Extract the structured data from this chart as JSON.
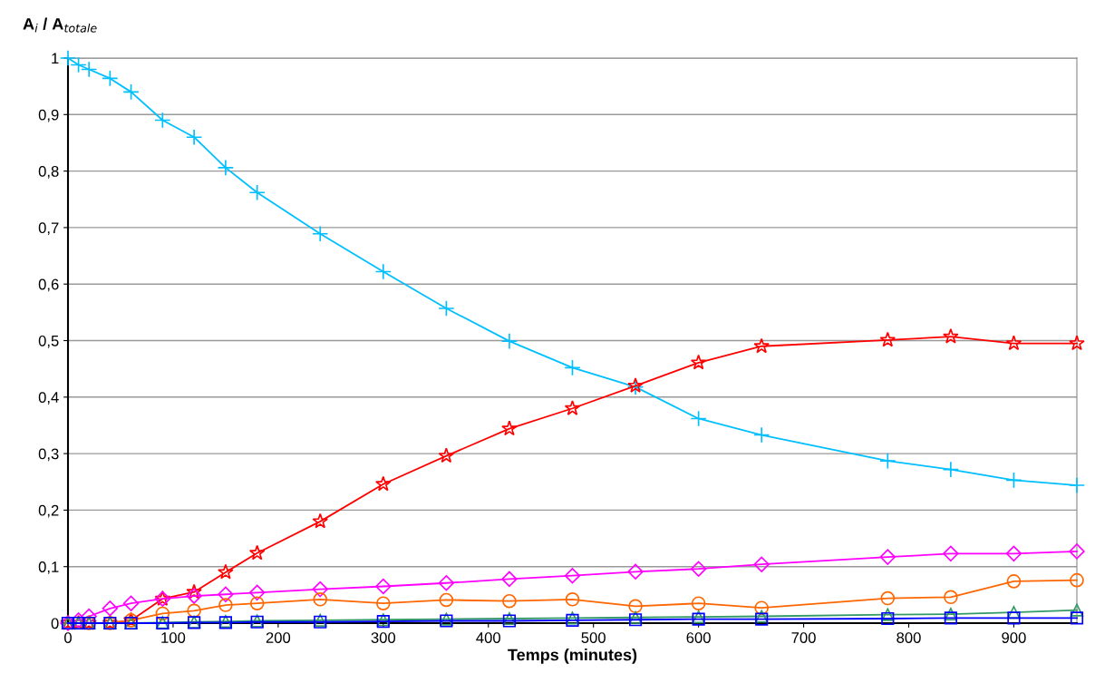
{
  "chart_data": {
    "type": "line",
    "ylabel": "A$_{i}$ / A$_{totale}$",
    "xlabel": "Temps (minutes)",
    "x": [
      0,
      10,
      20,
      40,
      60,
      90,
      120,
      150,
      180,
      240,
      300,
      360,
      420,
      480,
      540,
      600,
      660,
      780,
      840,
      900,
      960
    ],
    "xlim": [
      0,
      960
    ],
    "xticks": [
      0,
      100,
      200,
      300,
      400,
      500,
      600,
      700,
      800,
      900
    ],
    "ylim": [
      0,
      1
    ],
    "yticks": [
      0,
      {
        "value": 0.1,
        "label": "0,1"
      },
      {
        "value": 0.2,
        "label": "0,2"
      },
      {
        "value": 0.3,
        "label": "0,3"
      },
      {
        "value": 0.4,
        "label": "0,4"
      },
      {
        "value": 0.5,
        "label": "0,5"
      },
      {
        "value": 0.6,
        "label": "0,6"
      },
      {
        "value": 0.7,
        "label": "0,7"
      },
      {
        "value": 0.8,
        "label": "0,8"
      },
      {
        "value": 0.9,
        "label": "0,9"
      },
      1
    ],
    "grid": "y",
    "legend": false,
    "series": [
      {
        "color": "#00bfff",
        "marker": "cross",
        "values": [
          1,
          0.988,
          0.98,
          0.964,
          0.94,
          0.89,
          0.86,
          0.806,
          0.762,
          0.689,
          0.622,
          0.557,
          0.499,
          0.452,
          0.418,
          0.362,
          0.333,
          0.287,
          0.272,
          0.253,
          0.244
        ]
      },
      {
        "color": "#ff0000",
        "marker": "star",
        "values": [
          0,
          0,
          0,
          0,
          0.005,
          0.043,
          0.055,
          0.09,
          0.124,
          0.18,
          0.246,
          0.296,
          0.344,
          0.38,
          0.42,
          0.461,
          0.49,
          0.501,
          0.507,
          0.495,
          0.495
        ]
      },
      {
        "color": "#ff00ff",
        "marker": "diamond",
        "values": [
          0,
          0.005,
          0.012,
          0.026,
          0.035,
          0.043,
          0.048,
          0.051,
          0.054,
          0.06,
          0.065,
          0.071,
          0.078,
          0.084,
          0.091,
          0.096,
          0.104,
          0.117,
          0.123,
          0.123,
          0.127
        ]
      },
      {
        "color": "#ff6600",
        "marker": "circle",
        "values": [
          null,
          null,
          0,
          0,
          0.005,
          0.017,
          0.022,
          0.032,
          0.035,
          0.042,
          0.035,
          0.041,
          0.039,
          0.042,
          0.03,
          0.035,
          0.027,
          0.044,
          0.046,
          0.074,
          0.076
        ]
      },
      {
        "color": "#339966",
        "marker": "triangle",
        "values": [
          0,
          0,
          0,
          0,
          0,
          0.001,
          0.002,
          0.003,
          0.004,
          0.005,
          0.006,
          0.007,
          0.008,
          0.009,
          0.01,
          0.011,
          0.012,
          0.015,
          0.016,
          0.019,
          0.023
        ]
      },
      {
        "color": "#0000ff",
        "marker": "square",
        "values": [
          0,
          0,
          0,
          0,
          0,
          0,
          0.001,
          0.001,
          0.002,
          0.002,
          0.003,
          0.004,
          0.004,
          0.005,
          0.006,
          0.007,
          0.007,
          0.008,
          0.009,
          0.009,
          0.009
        ]
      }
    ]
  }
}
